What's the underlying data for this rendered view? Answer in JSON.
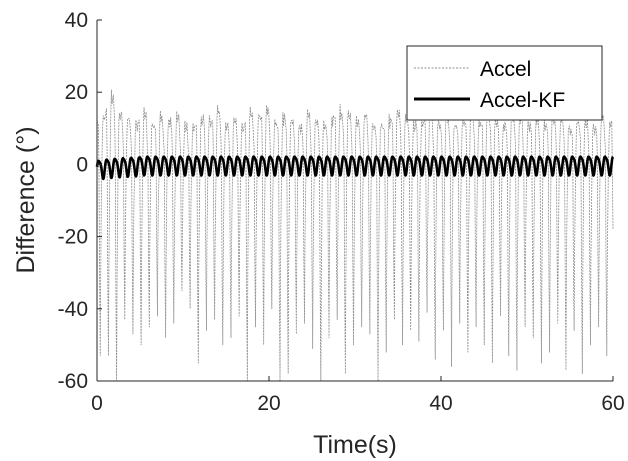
{
  "chart_data": {
    "type": "line",
    "xlabel": "Time(s)",
    "ylabel": "Difference (°)",
    "xlim": [
      0,
      60
    ],
    "ylim": [
      -60,
      40
    ],
    "xticks": [
      0,
      20,
      40,
      60
    ],
    "yticks": [
      -60,
      -40,
      -20,
      0,
      20,
      40
    ],
    "grid": false,
    "legend_position": "top-right",
    "series": [
      {
        "name": "Accel",
        "style": "thin dotted gray",
        "color": "#8c8c8c",
        "period_s": 0.95,
        "approx_range": [
          -60,
          22
        ],
        "peaks": [
          15,
          22,
          16,
          14,
          13,
          17,
          12,
          15,
          14,
          16,
          13,
          12,
          15,
          14,
          17,
          13,
          14,
          12,
          16,
          15,
          18,
          13,
          15,
          14,
          12,
          16,
          14,
          13,
          15,
          17,
          16,
          14,
          15,
          13,
          12,
          14,
          17,
          15,
          13,
          14,
          16,
          13,
          15,
          12,
          14,
          16,
          13,
          15,
          14,
          13,
          15,
          16,
          12,
          14,
          13,
          15,
          14,
          12,
          13,
          14,
          12,
          15,
          13
        ],
        "troughs": [
          -53,
          -53,
          -60,
          -43,
          -47,
          -50,
          -45,
          -42,
          -48,
          -44,
          -35,
          -40,
          -55,
          -46,
          -43,
          -50,
          -48,
          -42,
          -60,
          -45,
          -50,
          -40,
          -60,
          -58,
          -47,
          -44,
          -51,
          -60,
          -48,
          -43,
          -58,
          -50,
          -45,
          -47,
          -60,
          -52,
          -43,
          -50,
          -46,
          -49,
          -41,
          -54,
          -46,
          -56,
          -44,
          -52,
          -45,
          -50,
          -55,
          -42,
          -53,
          -57,
          -45,
          -48,
          -55,
          -52,
          -44,
          -57,
          -46,
          -58,
          -50,
          -45,
          -53
        ]
      },
      {
        "name": "Accel-KF",
        "style": "thick solid black",
        "color": "#000000",
        "period_s": 0.95,
        "approx_range": [
          -4,
          3
        ],
        "amplitude": 2.5,
        "offset": 0
      }
    ],
    "legend": [
      {
        "label": "Accel",
        "series": 0
      },
      {
        "label": "Accel-KF",
        "series": 1
      }
    ]
  }
}
